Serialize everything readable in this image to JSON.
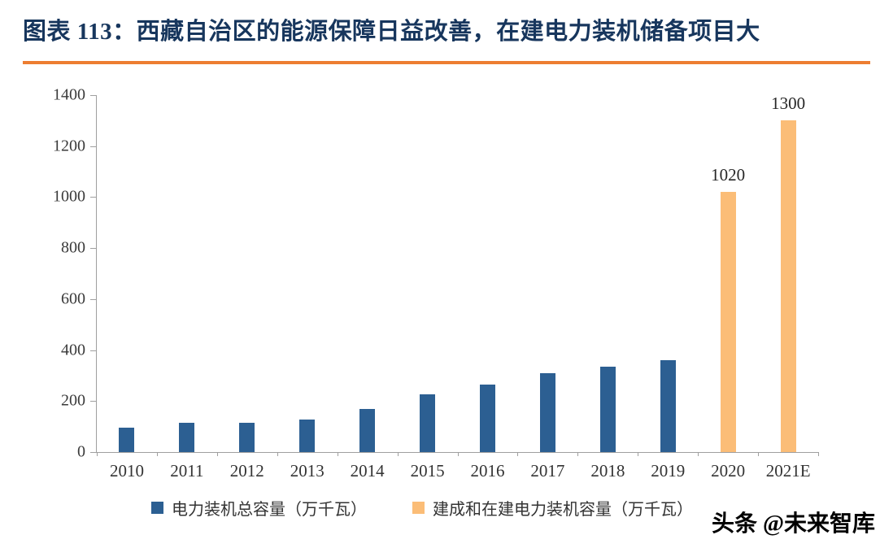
{
  "header": {
    "title": "图表 113：西藏自治区的能源保障日益改善，在建电力装机储备项目大",
    "title_color": "#17365d",
    "accent_rule_color": "#ed7d31"
  },
  "footer": {
    "watermark": "头条 @未来智库"
  },
  "chart_data": {
    "type": "bar",
    "title": "图表 113：西藏自治区的能源保障日益改善，在建电力装机储备项目大",
    "xlabel": "",
    "ylabel": "",
    "ylim": [
      0,
      1400
    ],
    "yticks": [
      0,
      200,
      400,
      600,
      800,
      1000,
      1200,
      1400
    ],
    "grid": false,
    "legend_position": "bottom",
    "categories": [
      "2010",
      "2011",
      "2012",
      "2013",
      "2014",
      "2015",
      "2016",
      "2017",
      "2018",
      "2019",
      "2020",
      "2021E"
    ],
    "series": [
      {
        "name": "电力装机总容量（万千瓦）",
        "color": "#2c5f92",
        "values": [
          97,
          115,
          116,
          128,
          170,
          228,
          264,
          309,
          334,
          360,
          null,
          null
        ]
      },
      {
        "name": "建成和在建电力装机容量（万千瓦）",
        "color": "#fbbd77",
        "values": [
          null,
          null,
          null,
          null,
          null,
          null,
          null,
          null,
          null,
          null,
          1020,
          1300
        ]
      }
    ],
    "data_labels": [
      null,
      null,
      null,
      null,
      null,
      null,
      null,
      null,
      null,
      null,
      "1020",
      "1300"
    ]
  }
}
